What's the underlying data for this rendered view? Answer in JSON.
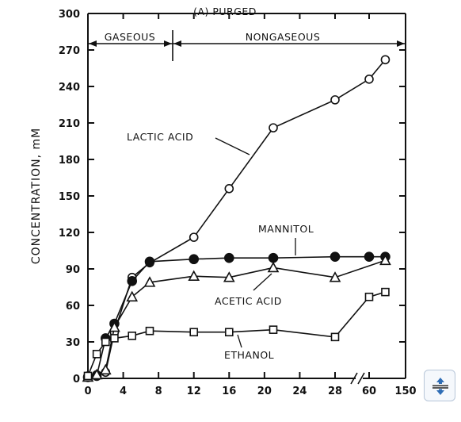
{
  "chart_data": {
    "type": "line",
    "title": "(A) PURGED",
    "xlabel": "",
    "ylabel": "CONCENTRATION, mM",
    "ylim": [
      0,
      300
    ],
    "yticks": [
      "0",
      "30",
      "60",
      "90",
      "120",
      "150",
      "180",
      "210",
      "240",
      "270",
      "300"
    ],
    "xticks": [
      "0",
      "4",
      "8",
      "12",
      "16",
      "20",
      "24",
      "28",
      "60",
      "150"
    ],
    "x_axis_break": "between 28 and 60",
    "phases": [
      {
        "label": "GASEOUS",
        "from": 0,
        "to": 10
      },
      {
        "label": "NONGASEOUS",
        "from": 10,
        "to": 150
      }
    ],
    "series": [
      {
        "name": "LACTIC ACID",
        "marker": "open-circle",
        "x": [
          0,
          1,
          2,
          3,
          5,
          7,
          12,
          16,
          21,
          28,
          60,
          100
        ],
        "y": [
          2,
          3,
          5,
          38,
          83,
          95,
          116,
          156,
          206,
          229,
          246,
          262
        ]
      },
      {
        "name": "MANNITOL",
        "marker": "filled-circle",
        "x": [
          0,
          1,
          2,
          3,
          5,
          7,
          12,
          16,
          21,
          28,
          60,
          100
        ],
        "y": [
          1,
          2,
          33,
          45,
          80,
          96,
          98,
          99,
          99,
          100,
          100,
          100
        ]
      },
      {
        "name": "ACETIC ACID",
        "marker": "open-triangle",
        "x": [
          0,
          1,
          2,
          3,
          5,
          7,
          12,
          16,
          21,
          28,
          100
        ],
        "y": [
          1,
          3,
          7,
          42,
          67,
          79,
          84,
          83,
          91,
          83,
          97
        ]
      },
      {
        "name": "ETHANOL",
        "marker": "open-square",
        "x": [
          0,
          1,
          2,
          3,
          5,
          7,
          12,
          16,
          21,
          28,
          60,
          100
        ],
        "y": [
          2,
          20,
          30,
          33,
          35,
          39,
          38,
          38,
          40,
          34,
          67,
          71
        ]
      }
    ]
  },
  "toolbar": {
    "toggle_icon": "expand-collapse-icon"
  }
}
